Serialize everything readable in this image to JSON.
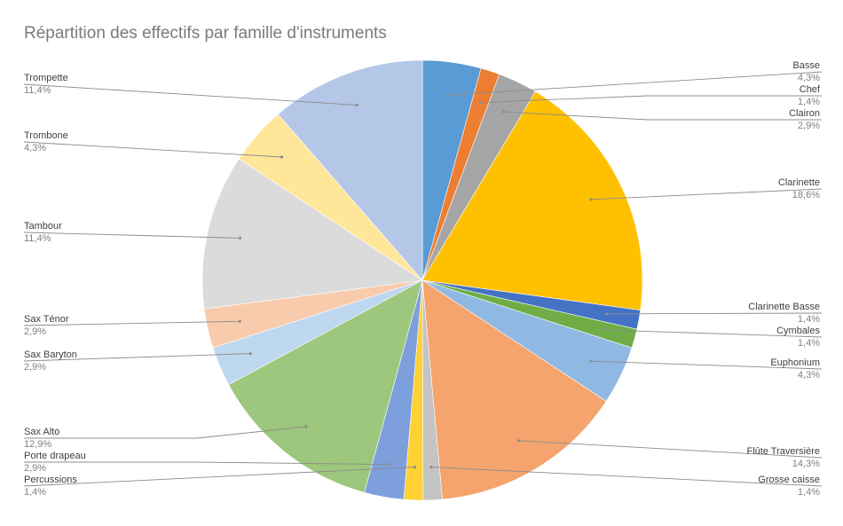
{
  "chart_data": {
    "type": "pie",
    "title": "Répartition des effectifs par famille d'instruments",
    "legend": "none",
    "slices": [
      {
        "label": "Basse",
        "value": 4.3,
        "value_label": "4,3%",
        "color": "#5b9bd5"
      },
      {
        "label": "Chef",
        "value": 1.4,
        "value_label": "1,4%",
        "color": "#ed7d31"
      },
      {
        "label": "Clairon",
        "value": 2.9,
        "value_label": "2,9%",
        "color": "#a5a5a5"
      },
      {
        "label": "Clarinette",
        "value": 18.6,
        "value_label": "18,6%",
        "color": "#ffc000"
      },
      {
        "label": "Clarinette Basse",
        "value": 1.4,
        "value_label": "1,4%",
        "color": "#4472c4"
      },
      {
        "label": "Cymbales",
        "value": 1.4,
        "value_label": "1,4%",
        "color": "#70ad47"
      },
      {
        "label": "Euphonium",
        "value": 4.3,
        "value_label": "4,3%",
        "color": "#8fb9e3"
      },
      {
        "label": "Flûte Traversière",
        "value": 14.3,
        "value_label": "14,3%",
        "color": "#f4a46c"
      },
      {
        "label": "Grosse caisse",
        "value": 1.4,
        "value_label": "1,4%",
        "color": "#c4c4c4"
      },
      {
        "label": "Percussions",
        "value": 1.4,
        "value_label": "1,4%",
        "color": "#ffd133"
      },
      {
        "label": "Porte drapeau",
        "value": 2.9,
        "value_label": "2,9%",
        "color": "#7d9fdc"
      },
      {
        "label": "Sax Alto",
        "value": 12.9,
        "value_label": "12,9%",
        "color": "#9dc77c"
      },
      {
        "label": "Sax Baryton",
        "value": 2.9,
        "value_label": "2,9%",
        "color": "#bdd7ee"
      },
      {
        "label": "Sax Ténor",
        "value": 2.9,
        "value_label": "2,9%",
        "color": "#f8cbad"
      },
      {
        "label": "Tambour",
        "value": 11.4,
        "value_label": "11,4%",
        "color": "#dbdbdb"
      },
      {
        "label": "Trombone",
        "value": 4.3,
        "value_label": "4,3%",
        "color": "#ffe699"
      },
      {
        "label": "Trompette",
        "value": 11.4,
        "value_label": "11,4%",
        "color": "#b4c7e7"
      }
    ]
  }
}
